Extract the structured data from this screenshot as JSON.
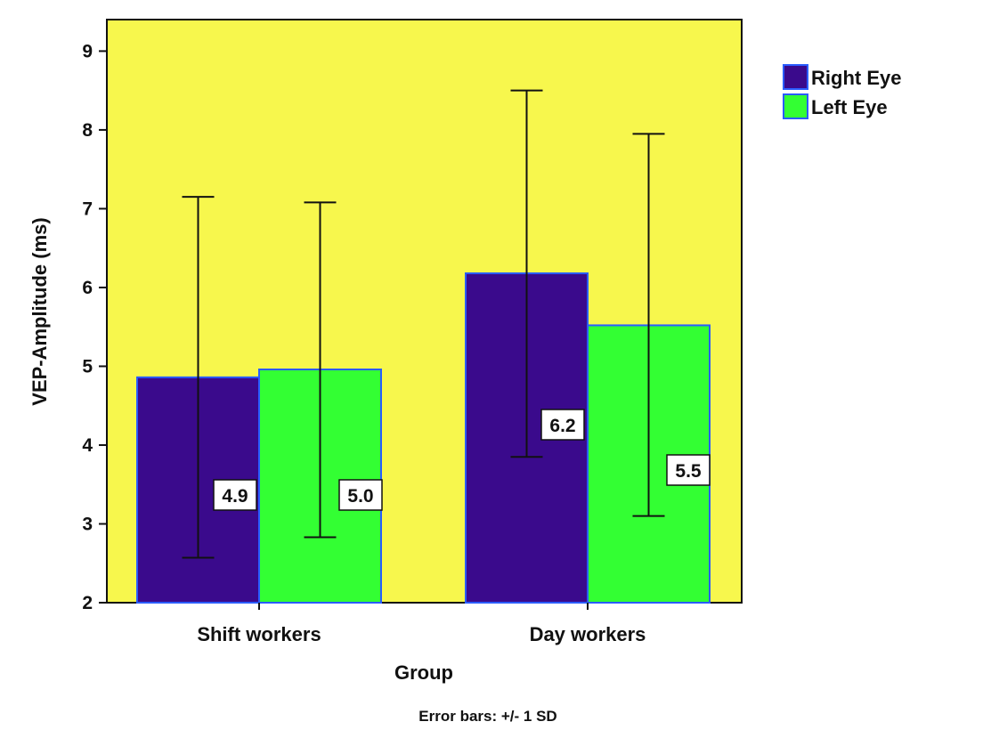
{
  "chart_data": {
    "type": "bar",
    "categories": [
      "Shift workers",
      "Day workers"
    ],
    "series": [
      {
        "name": "Right Eye",
        "color": "#3a0a8c",
        "values": [
          4.86,
          6.18
        ],
        "sd_low": [
          2.57,
          3.85
        ],
        "sd_high": [
          7.15,
          8.5
        ],
        "value_labels": [
          "4.9",
          "6.2"
        ]
      },
      {
        "name": "Left Eye",
        "color": "#33ff33",
        "values": [
          4.96,
          5.52
        ],
        "sd_low": [
          2.83,
          3.1
        ],
        "sd_high": [
          7.08,
          7.95
        ],
        "value_labels": [
          "5.0",
          "5.5"
        ]
      }
    ],
    "xlabel": "Group",
    "ylabel": "VEP-Amplitude (ms)",
    "ylim": [
      2,
      9.4
    ],
    "yticks": [
      "2",
      "3",
      "4",
      "5",
      "6",
      "7",
      "8",
      "9"
    ],
    "note": "Error bars: +/- 1 SD",
    "legend_position": "top-right",
    "grid": false,
    "plot_background": "#f7f74d",
    "bar_edge_color": "#2a5cff"
  }
}
